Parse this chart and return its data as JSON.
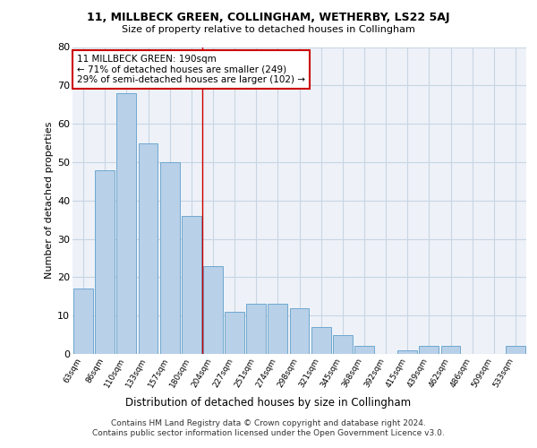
{
  "title": "11, MILLBECK GREEN, COLLINGHAM, WETHERBY, LS22 5AJ",
  "subtitle": "Size of property relative to detached houses in Collingham",
  "xlabel": "Distribution of detached houses by size in Collingham",
  "ylabel": "Number of detached properties",
  "categories": [
    "63sqm",
    "86sqm",
    "110sqm",
    "133sqm",
    "157sqm",
    "180sqm",
    "204sqm",
    "227sqm",
    "251sqm",
    "274sqm",
    "298sqm",
    "321sqm",
    "345sqm",
    "368sqm",
    "392sqm",
    "415sqm",
    "439sqm",
    "462sqm",
    "486sqm",
    "509sqm",
    "533sqm"
  ],
  "values": [
    17,
    48,
    68,
    55,
    50,
    36,
    23,
    11,
    13,
    13,
    12,
    7,
    5,
    2,
    0,
    1,
    2,
    2,
    0,
    0,
    2
  ],
  "bar_color": "#b8d0e8",
  "bar_edge_color": "#6fa8d0",
  "vline_x": 5.5,
  "vline_color": "#cc0000",
  "annotation_text": "11 MILLBECK GREEN: 190sqm\n← 71% of detached houses are smaller (249)\n29% of semi-detached houses are larger (102) →",
  "annotation_box_color": "#ffffff",
  "annotation_box_edge": "#cc0000",
  "grid_color": "#c8d4e4",
  "background_color": "#eef2f8",
  "footer": "Contains HM Land Registry data © Crown copyright and database right 2024.\nContains public sector information licensed under the Open Government Licence v3.0.",
  "ylim": [
    0,
    80
  ],
  "yticks": [
    0,
    10,
    20,
    30,
    40,
    50,
    60,
    70,
    80
  ]
}
